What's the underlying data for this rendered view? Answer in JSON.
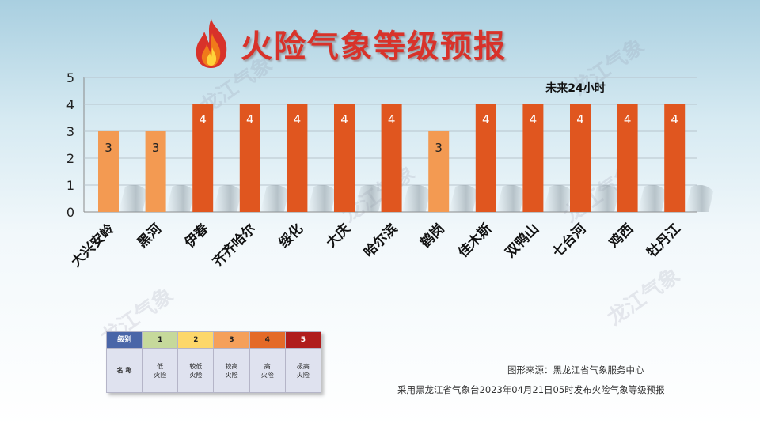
{
  "title": "火险气象等级预报",
  "watermark_text": "龙江气象",
  "chart_data": {
    "type": "bar",
    "categories": [
      "大兴安岭",
      "黑河",
      "伊春",
      "齐齐哈尔",
      "绥化",
      "大庆",
      "哈尔滨",
      "鹤岗",
      "佳木斯",
      "双鸭山",
      "七台河",
      "鸡西",
      "牡丹江"
    ],
    "values": [
      3,
      3,
      4,
      4,
      4,
      4,
      4,
      3,
      4,
      4,
      4,
      4,
      4
    ],
    "data_labels": [
      "3",
      "3",
      "4",
      "4",
      "4",
      "4",
      "4",
      "3",
      "4",
      "4",
      "4",
      "4",
      "4"
    ],
    "yticks": [
      "0",
      "1",
      "2",
      "3",
      "4",
      "5"
    ],
    "ylim": [
      0,
      5
    ],
    "annotation": "未来24小时",
    "grid": true,
    "colors": {
      "level3": "#f39a52",
      "level4": "#e0561f"
    }
  },
  "legend": {
    "header_label": "级别",
    "name_label": "名 称",
    "levels": [
      {
        "level": "1",
        "color": "#c6d99b",
        "name_line1": "低",
        "name_line2": "火险"
      },
      {
        "level": "2",
        "color": "#fdd76a",
        "name_line1": "较低",
        "name_line2": "火险"
      },
      {
        "level": "3",
        "color": "#f5a05a",
        "name_line1": "较高",
        "name_line2": "火险"
      },
      {
        "level": "4",
        "color": "#e46a28",
        "name_line1": "高",
        "name_line2": "火险"
      },
      {
        "level": "5",
        "color": "#b01c1c",
        "name_line1": "极高",
        "name_line2": "火险"
      }
    ],
    "header_color": "#4a66a8"
  },
  "source": "图形来源：黑龙江省气象服务中心",
  "footnote": "采用黑龙江省气象台2023年04月21日05时发布火险气象等级预报"
}
